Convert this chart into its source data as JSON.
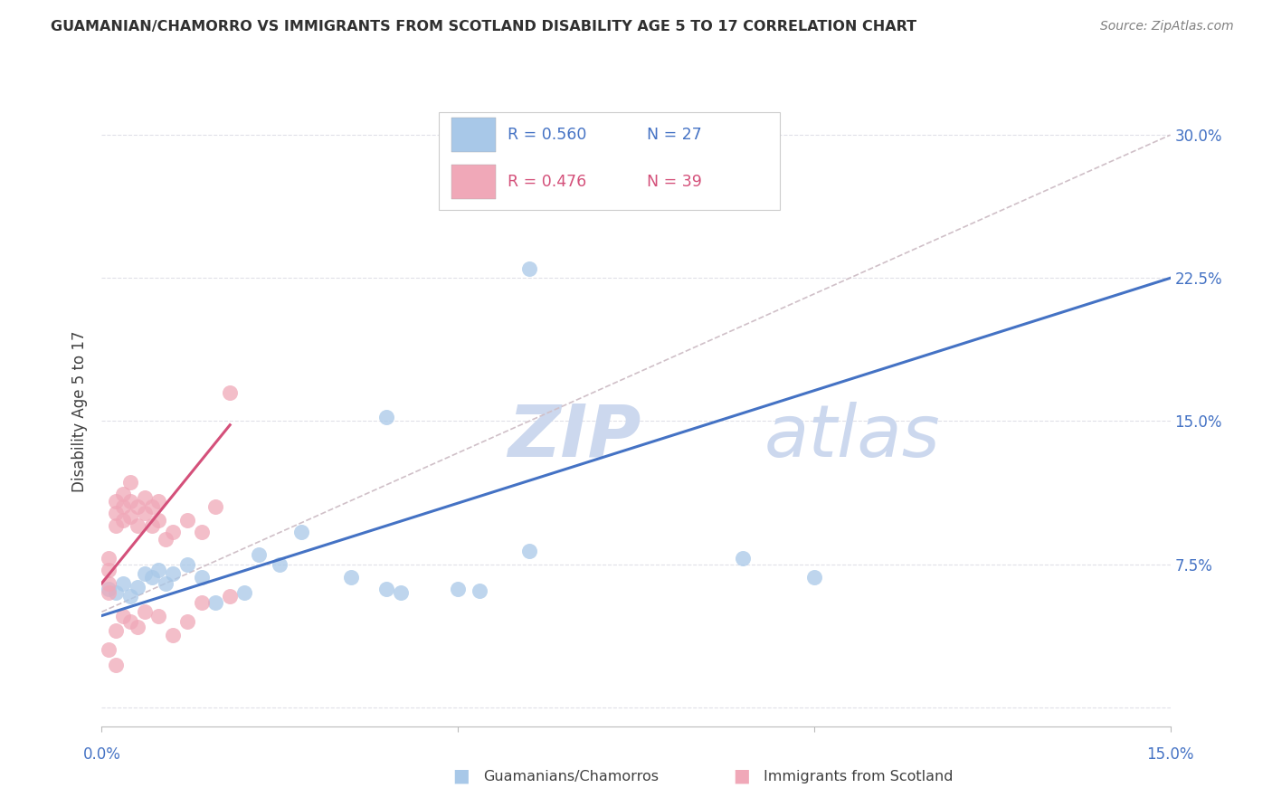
{
  "title": "GUAMANIAN/CHAMORRO VS IMMIGRANTS FROM SCOTLAND DISABILITY AGE 5 TO 17 CORRELATION CHART",
  "source": "Source: ZipAtlas.com",
  "ylabel": "Disability Age 5 to 17",
  "ytick_labels": [
    "",
    "7.5%",
    "15.0%",
    "22.5%",
    "30.0%"
  ],
  "ytick_vals": [
    0.0,
    0.075,
    0.15,
    0.225,
    0.3
  ],
  "xmin": 0.0,
  "xmax": 0.15,
  "ymin": -0.01,
  "ymax": 0.32,
  "blue_color": "#a8c8e8",
  "pink_color": "#f0a8b8",
  "trendline_blue": "#4472c4",
  "trendline_pink": "#d4507a",
  "trendline_dashed_color": "#d0c0c8",
  "axis_color": "#4472c4",
  "watermark_color": "#ccd8ee",
  "grid_color": "#e0e0e8",
  "title_color": "#303030",
  "source_color": "#808080",
  "blue_points": [
    [
      0.001,
      0.062
    ],
    [
      0.002,
      0.06
    ],
    [
      0.003,
      0.065
    ],
    [
      0.004,
      0.058
    ],
    [
      0.005,
      0.063
    ],
    [
      0.006,
      0.07
    ],
    [
      0.007,
      0.068
    ],
    [
      0.008,
      0.072
    ],
    [
      0.009,
      0.065
    ],
    [
      0.01,
      0.07
    ],
    [
      0.012,
      0.075
    ],
    [
      0.014,
      0.068
    ],
    [
      0.016,
      0.055
    ],
    [
      0.02,
      0.06
    ],
    [
      0.022,
      0.08
    ],
    [
      0.025,
      0.075
    ],
    [
      0.028,
      0.092
    ],
    [
      0.035,
      0.068
    ],
    [
      0.04,
      0.062
    ],
    [
      0.042,
      0.06
    ],
    [
      0.05,
      0.062
    ],
    [
      0.053,
      0.061
    ],
    [
      0.04,
      0.152
    ],
    [
      0.06,
      0.082
    ],
    [
      0.06,
      0.23
    ],
    [
      0.09,
      0.078
    ],
    [
      0.1,
      0.068
    ]
  ],
  "pink_points": [
    [
      0.001,
      0.06
    ],
    [
      0.001,
      0.065
    ],
    [
      0.001,
      0.072
    ],
    [
      0.001,
      0.078
    ],
    [
      0.002,
      0.095
    ],
    [
      0.002,
      0.102
    ],
    [
      0.002,
      0.108
    ],
    [
      0.003,
      0.098
    ],
    [
      0.003,
      0.105
    ],
    [
      0.003,
      0.112
    ],
    [
      0.004,
      0.1
    ],
    [
      0.004,
      0.108
    ],
    [
      0.004,
      0.118
    ],
    [
      0.005,
      0.095
    ],
    [
      0.005,
      0.105
    ],
    [
      0.006,
      0.102
    ],
    [
      0.006,
      0.11
    ],
    [
      0.007,
      0.095
    ],
    [
      0.007,
      0.105
    ],
    [
      0.008,
      0.098
    ],
    [
      0.008,
      0.108
    ],
    [
      0.009,
      0.088
    ],
    [
      0.01,
      0.092
    ],
    [
      0.012,
      0.098
    ],
    [
      0.014,
      0.092
    ],
    [
      0.016,
      0.105
    ],
    [
      0.018,
      0.165
    ],
    [
      0.002,
      0.04
    ],
    [
      0.003,
      0.048
    ],
    [
      0.004,
      0.045
    ],
    [
      0.005,
      0.042
    ],
    [
      0.006,
      0.05
    ],
    [
      0.008,
      0.048
    ],
    [
      0.01,
      0.038
    ],
    [
      0.012,
      0.045
    ],
    [
      0.014,
      0.055
    ],
    [
      0.018,
      0.058
    ],
    [
      0.001,
      0.03
    ],
    [
      0.002,
      0.022
    ]
  ],
  "blue_trendline": [
    [
      0.0,
      0.048
    ],
    [
      0.15,
      0.225
    ]
  ],
  "pink_trendline": [
    [
      0.0,
      0.065
    ],
    [
      0.018,
      0.148
    ]
  ],
  "dashed_trendline": [
    [
      0.0,
      0.05
    ],
    [
      0.15,
      0.3
    ]
  ]
}
